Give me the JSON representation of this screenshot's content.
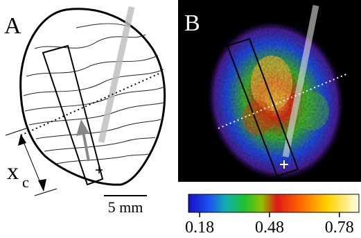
{
  "panels": [
    {
      "label": "A",
      "annotation": {
        "symbol": "x",
        "subscript": "c"
      },
      "scale_bar": "5 mm"
    },
    {
      "label": "B"
    }
  ],
  "colorbar": {
    "range": [
      0.132,
      0.864
    ],
    "ticks": [
      0.18,
      0.48,
      0.78
    ]
  }
}
